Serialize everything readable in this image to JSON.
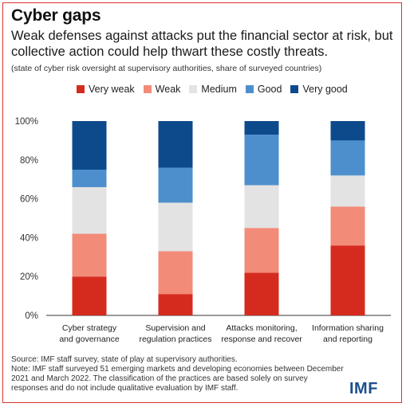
{
  "chart_data": {
    "type": "bar",
    "stacked": true,
    "title": "Cyber gaps",
    "subtitle": "Weak defenses against attacks put the financial sector at risk, but collective action could help thwart these costly threats.",
    "note": "(state of cyber risk oversight at supervisory authorities, share of surveyed countries)",
    "categories": [
      [
        "Cyber strategy",
        "and governance"
      ],
      [
        "Supervision and",
        "regulation practices"
      ],
      [
        "Attacks monitoring,",
        "response and recover"
      ],
      [
        "Information sharing",
        "and reporting"
      ]
    ],
    "series": [
      {
        "name": "Very weak",
        "color": "#d52b1e",
        "values": [
          20,
          11,
          22,
          36
        ]
      },
      {
        "name": "Weak",
        "color": "#f28b78",
        "values": [
          22,
          22,
          23,
          20
        ]
      },
      {
        "name": "Medium",
        "color": "#e3e3e3",
        "values": [
          24,
          25,
          22,
          16
        ]
      },
      {
        "name": "Good",
        "color": "#4d8fcc",
        "values": [
          9,
          18,
          26,
          18
        ]
      },
      {
        "name": "Very good",
        "color": "#0d4a8c",
        "values": [
          25,
          24,
          7,
          10
        ]
      }
    ],
    "yticks": [
      "0%",
      "20%",
      "40%",
      "60%",
      "80%",
      "100%"
    ],
    "ylim": [
      0,
      100
    ],
    "legend_position": "top",
    "grid": false
  },
  "footer": {
    "source": "Source: IMF staff survey, state of play at supervisory authorities.",
    "note": "Note: IMF staff surveyed 51 emerging markets and developing economies between December 2021 and March 2022. The classification of the practices are based solely on survey responses and do not include qualitative evaluation by IMF staff."
  },
  "logo": "IMF",
  "frame_color": "#d9342b"
}
